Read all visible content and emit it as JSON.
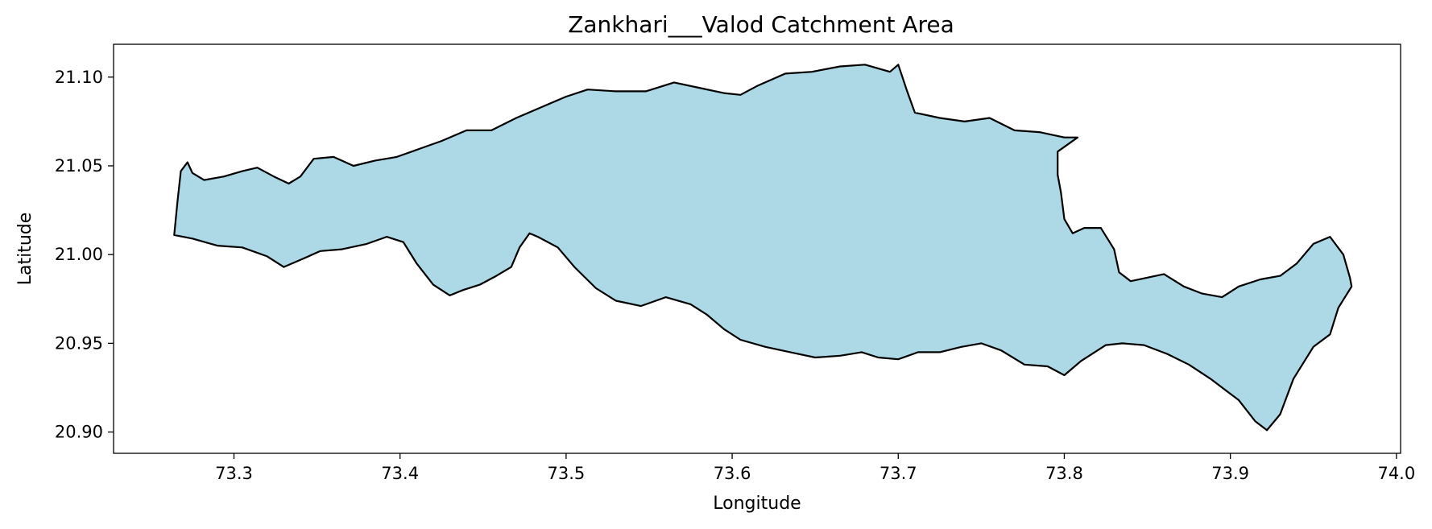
{
  "chart_data": {
    "type": "area",
    "title": "Zankhari___Valod Catchment Area",
    "xlabel": "Longitude",
    "ylabel": "Latitude",
    "xlim": [
      73.2275,
      74.0025
    ],
    "ylim": [
      20.888,
      21.1185
    ],
    "x_ticks": [
      "73.3",
      "73.4",
      "73.5",
      "73.6",
      "73.7",
      "73.8",
      "73.9",
      "74.0"
    ],
    "x_tick_values": [
      73.3,
      73.4,
      73.5,
      73.6,
      73.7,
      73.8,
      73.9,
      74.0
    ],
    "y_ticks": [
      "20.90",
      "20.95",
      "21.00",
      "21.05",
      "21.10"
    ],
    "y_tick_values": [
      20.9,
      20.95,
      21.0,
      21.05,
      21.1
    ],
    "grid": false,
    "fill_color": "#add8e6",
    "edge_color": "#000000",
    "boundary": [
      [
        73.264,
        21.011
      ],
      [
        73.266,
        21.03
      ],
      [
        73.268,
        21.047
      ],
      [
        73.272,
        21.052
      ],
      [
        73.275,
        21.046
      ],
      [
        73.282,
        21.042
      ],
      [
        73.294,
        21.044
      ],
      [
        73.305,
        21.047
      ],
      [
        73.314,
        21.049
      ],
      [
        73.324,
        21.044
      ],
      [
        73.333,
        21.04
      ],
      [
        73.34,
        21.044
      ],
      [
        73.348,
        21.054
      ],
      [
        73.36,
        21.055
      ],
      [
        73.372,
        21.05
      ],
      [
        73.385,
        21.053
      ],
      [
        73.398,
        21.055
      ],
      [
        73.413,
        21.06
      ],
      [
        73.425,
        21.064
      ],
      [
        73.44,
        21.07
      ],
      [
        73.455,
        21.07
      ],
      [
        73.47,
        21.077
      ],
      [
        73.485,
        21.083
      ],
      [
        73.5,
        21.089
      ],
      [
        73.513,
        21.093
      ],
      [
        73.53,
        21.092
      ],
      [
        73.548,
        21.092
      ],
      [
        73.565,
        21.097
      ],
      [
        73.58,
        21.094
      ],
      [
        73.595,
        21.091
      ],
      [
        73.605,
        21.09
      ],
      [
        73.615,
        21.095
      ],
      [
        73.632,
        21.102
      ],
      [
        73.648,
        21.103
      ],
      [
        73.665,
        21.106
      ],
      [
        73.68,
        21.107
      ],
      [
        73.695,
        21.103
      ],
      [
        73.7,
        21.107
      ],
      [
        73.705,
        21.093
      ],
      [
        73.71,
        21.08
      ],
      [
        73.725,
        21.077
      ],
      [
        73.74,
        21.075
      ],
      [
        73.755,
        21.077
      ],
      [
        73.77,
        21.07
      ],
      [
        73.785,
        21.069
      ],
      [
        73.8,
        21.066
      ],
      [
        73.808,
        21.066
      ],
      [
        73.796,
        21.058
      ],
      [
        73.796,
        21.045
      ],
      [
        73.798,
        21.035
      ],
      [
        73.8,
        21.02
      ],
      [
        73.805,
        21.012
      ],
      [
        73.812,
        21.015
      ],
      [
        73.822,
        21.015
      ],
      [
        73.83,
        21.003
      ],
      [
        73.833,
        20.99
      ],
      [
        73.84,
        20.985
      ],
      [
        73.85,
        20.987
      ],
      [
        73.86,
        20.989
      ],
      [
        73.872,
        20.982
      ],
      [
        73.883,
        20.978
      ],
      [
        73.895,
        20.976
      ],
      [
        73.905,
        20.982
      ],
      [
        73.918,
        20.986
      ],
      [
        73.93,
        20.988
      ],
      [
        73.94,
        20.995
      ],
      [
        73.95,
        21.006
      ],
      [
        73.96,
        21.01
      ],
      [
        73.968,
        21.0
      ],
      [
        73.972,
        20.987
      ],
      [
        73.973,
        20.982
      ],
      [
        73.965,
        20.97
      ],
      [
        73.96,
        20.955
      ],
      [
        73.95,
        20.948
      ],
      [
        73.938,
        20.93
      ],
      [
        73.93,
        20.91
      ],
      [
        73.922,
        20.901
      ],
      [
        73.915,
        20.906
      ],
      [
        73.905,
        20.918
      ],
      [
        73.888,
        20.93
      ],
      [
        73.875,
        20.938
      ],
      [
        73.862,
        20.944
      ],
      [
        73.848,
        20.949
      ],
      [
        73.835,
        20.95
      ],
      [
        73.825,
        20.949
      ],
      [
        73.81,
        20.94
      ],
      [
        73.8,
        20.932
      ],
      [
        73.79,
        20.937
      ],
      [
        73.776,
        20.938
      ],
      [
        73.762,
        20.946
      ],
      [
        73.75,
        20.95
      ],
      [
        73.738,
        20.948
      ],
      [
        73.725,
        20.945
      ],
      [
        73.712,
        20.945
      ],
      [
        73.7,
        20.941
      ],
      [
        73.688,
        20.942
      ],
      [
        73.678,
        20.945
      ],
      [
        73.665,
        20.943
      ],
      [
        73.65,
        20.942
      ],
      [
        73.635,
        20.945
      ],
      [
        73.62,
        20.948
      ],
      [
        73.605,
        20.952
      ],
      [
        73.595,
        20.958
      ],
      [
        73.585,
        20.966
      ],
      [
        73.575,
        20.972
      ],
      [
        73.56,
        20.976
      ],
      [
        73.545,
        20.971
      ],
      [
        73.53,
        20.974
      ],
      [
        73.518,
        20.981
      ],
      [
        73.505,
        20.993
      ],
      [
        73.495,
        21.004
      ],
      [
        73.483,
        21.01
      ],
      [
        73.478,
        21.012
      ],
      [
        73.472,
        21.004
      ],
      [
        73.467,
        20.993
      ],
      [
        73.458,
        20.988
      ],
      [
        73.448,
        20.983
      ],
      [
        73.438,
        20.98
      ],
      [
        73.43,
        20.977
      ],
      [
        73.42,
        20.983
      ],
      [
        73.41,
        20.995
      ],
      [
        73.402,
        21.007
      ],
      [
        73.392,
        21.01
      ],
      [
        73.38,
        21.006
      ],
      [
        73.365,
        21.003
      ],
      [
        73.352,
        21.002
      ],
      [
        73.34,
        20.997
      ],
      [
        73.33,
        20.993
      ],
      [
        73.32,
        20.999
      ],
      [
        73.305,
        21.004
      ],
      [
        73.29,
        21.005
      ],
      [
        73.275,
        21.009
      ],
      [
        73.264,
        21.011
      ]
    ]
  }
}
